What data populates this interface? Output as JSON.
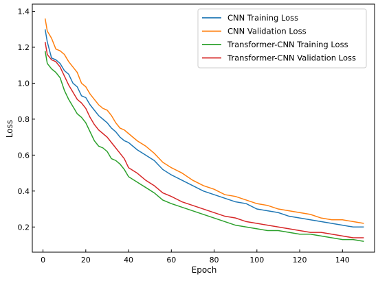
{
  "chart_data": {
    "type": "line",
    "title": "",
    "xlabel": "Epoch",
    "ylabel": "Loss",
    "xlim": [
      -5,
      155
    ],
    "ylim": [
      0.06,
      1.44
    ],
    "xticks": [
      0,
      20,
      40,
      60,
      80,
      100,
      120,
      140
    ],
    "yticks": [
      0.2,
      0.4,
      0.6,
      0.8,
      1.0,
      1.2,
      1.4
    ],
    "ytick_labels": [
      "0.2",
      "0.4",
      "0.6",
      "0.8",
      "1.0",
      "1.2",
      "1.4"
    ],
    "grid": false,
    "legend_position": "top-right",
    "series": [
      {
        "name": "CNN Training Loss",
        "color": "#1f77b4",
        "x": [
          1,
          2,
          4,
          6,
          8,
          10,
          12,
          14,
          16,
          18,
          20,
          22,
          24,
          26,
          28,
          30,
          32,
          34,
          36,
          38,
          40,
          44,
          48,
          52,
          56,
          60,
          65,
          70,
          75,
          80,
          85,
          90,
          95,
          100,
          105,
          110,
          115,
          120,
          125,
          130,
          135,
          140,
          145,
          150
        ],
        "y": [
          1.3,
          1.23,
          1.14,
          1.13,
          1.11,
          1.07,
          1.05,
          1.0,
          0.98,
          0.93,
          0.92,
          0.88,
          0.85,
          0.82,
          0.8,
          0.78,
          0.75,
          0.73,
          0.7,
          0.68,
          0.67,
          0.63,
          0.6,
          0.57,
          0.52,
          0.49,
          0.46,
          0.43,
          0.4,
          0.38,
          0.36,
          0.34,
          0.33,
          0.3,
          0.29,
          0.28,
          0.26,
          0.25,
          0.24,
          0.23,
          0.22,
          0.21,
          0.2,
          0.2
        ]
      },
      {
        "name": "CNN Validation Loss",
        "color": "#ff7f0e",
        "x": [
          1,
          2,
          4,
          6,
          8,
          10,
          12,
          14,
          16,
          18,
          20,
          22,
          24,
          26,
          28,
          30,
          32,
          34,
          36,
          38,
          40,
          44,
          48,
          52,
          56,
          60,
          65,
          70,
          75,
          80,
          85,
          90,
          95,
          100,
          105,
          110,
          115,
          120,
          125,
          130,
          135,
          140,
          145,
          150
        ],
        "y": [
          1.36,
          1.29,
          1.25,
          1.19,
          1.18,
          1.16,
          1.12,
          1.09,
          1.06,
          1.0,
          0.98,
          0.94,
          0.91,
          0.88,
          0.86,
          0.85,
          0.82,
          0.78,
          0.75,
          0.74,
          0.72,
          0.68,
          0.65,
          0.61,
          0.56,
          0.53,
          0.5,
          0.46,
          0.43,
          0.41,
          0.38,
          0.37,
          0.35,
          0.33,
          0.32,
          0.3,
          0.29,
          0.28,
          0.27,
          0.25,
          0.24,
          0.24,
          0.23,
          0.22
        ]
      },
      {
        "name": "Transformer-CNN Training Loss",
        "color": "#2ca02c",
        "x": [
          1,
          2,
          4,
          6,
          8,
          10,
          12,
          14,
          16,
          18,
          20,
          22,
          24,
          26,
          28,
          30,
          32,
          34,
          36,
          38,
          40,
          44,
          48,
          52,
          56,
          60,
          65,
          70,
          75,
          80,
          85,
          90,
          95,
          100,
          105,
          110,
          115,
          120,
          125,
          130,
          135,
          140,
          145,
          150
        ],
        "y": [
          1.18,
          1.11,
          1.08,
          1.06,
          1.03,
          0.96,
          0.91,
          0.87,
          0.83,
          0.81,
          0.78,
          0.73,
          0.68,
          0.65,
          0.64,
          0.62,
          0.58,
          0.57,
          0.55,
          0.52,
          0.48,
          0.45,
          0.42,
          0.39,
          0.35,
          0.33,
          0.31,
          0.29,
          0.27,
          0.25,
          0.23,
          0.21,
          0.2,
          0.19,
          0.18,
          0.18,
          0.17,
          0.16,
          0.16,
          0.15,
          0.14,
          0.13,
          0.13,
          0.12
        ]
      },
      {
        "name": "Transformer-CNN Validation Loss",
        "color": "#d62728",
        "x": [
          1,
          2,
          4,
          6,
          8,
          10,
          12,
          14,
          16,
          18,
          20,
          22,
          24,
          26,
          28,
          30,
          32,
          34,
          36,
          38,
          40,
          44,
          48,
          52,
          56,
          60,
          65,
          70,
          75,
          80,
          85,
          90,
          95,
          100,
          105,
          110,
          115,
          120,
          125,
          130,
          135,
          140,
          145,
          150
        ],
        "y": [
          1.23,
          1.16,
          1.13,
          1.12,
          1.09,
          1.04,
          0.99,
          0.95,
          0.91,
          0.89,
          0.86,
          0.81,
          0.77,
          0.74,
          0.72,
          0.7,
          0.67,
          0.64,
          0.61,
          0.58,
          0.53,
          0.5,
          0.46,
          0.43,
          0.39,
          0.37,
          0.34,
          0.32,
          0.3,
          0.28,
          0.26,
          0.25,
          0.23,
          0.22,
          0.21,
          0.2,
          0.19,
          0.18,
          0.17,
          0.17,
          0.16,
          0.15,
          0.14,
          0.14
        ]
      }
    ]
  }
}
